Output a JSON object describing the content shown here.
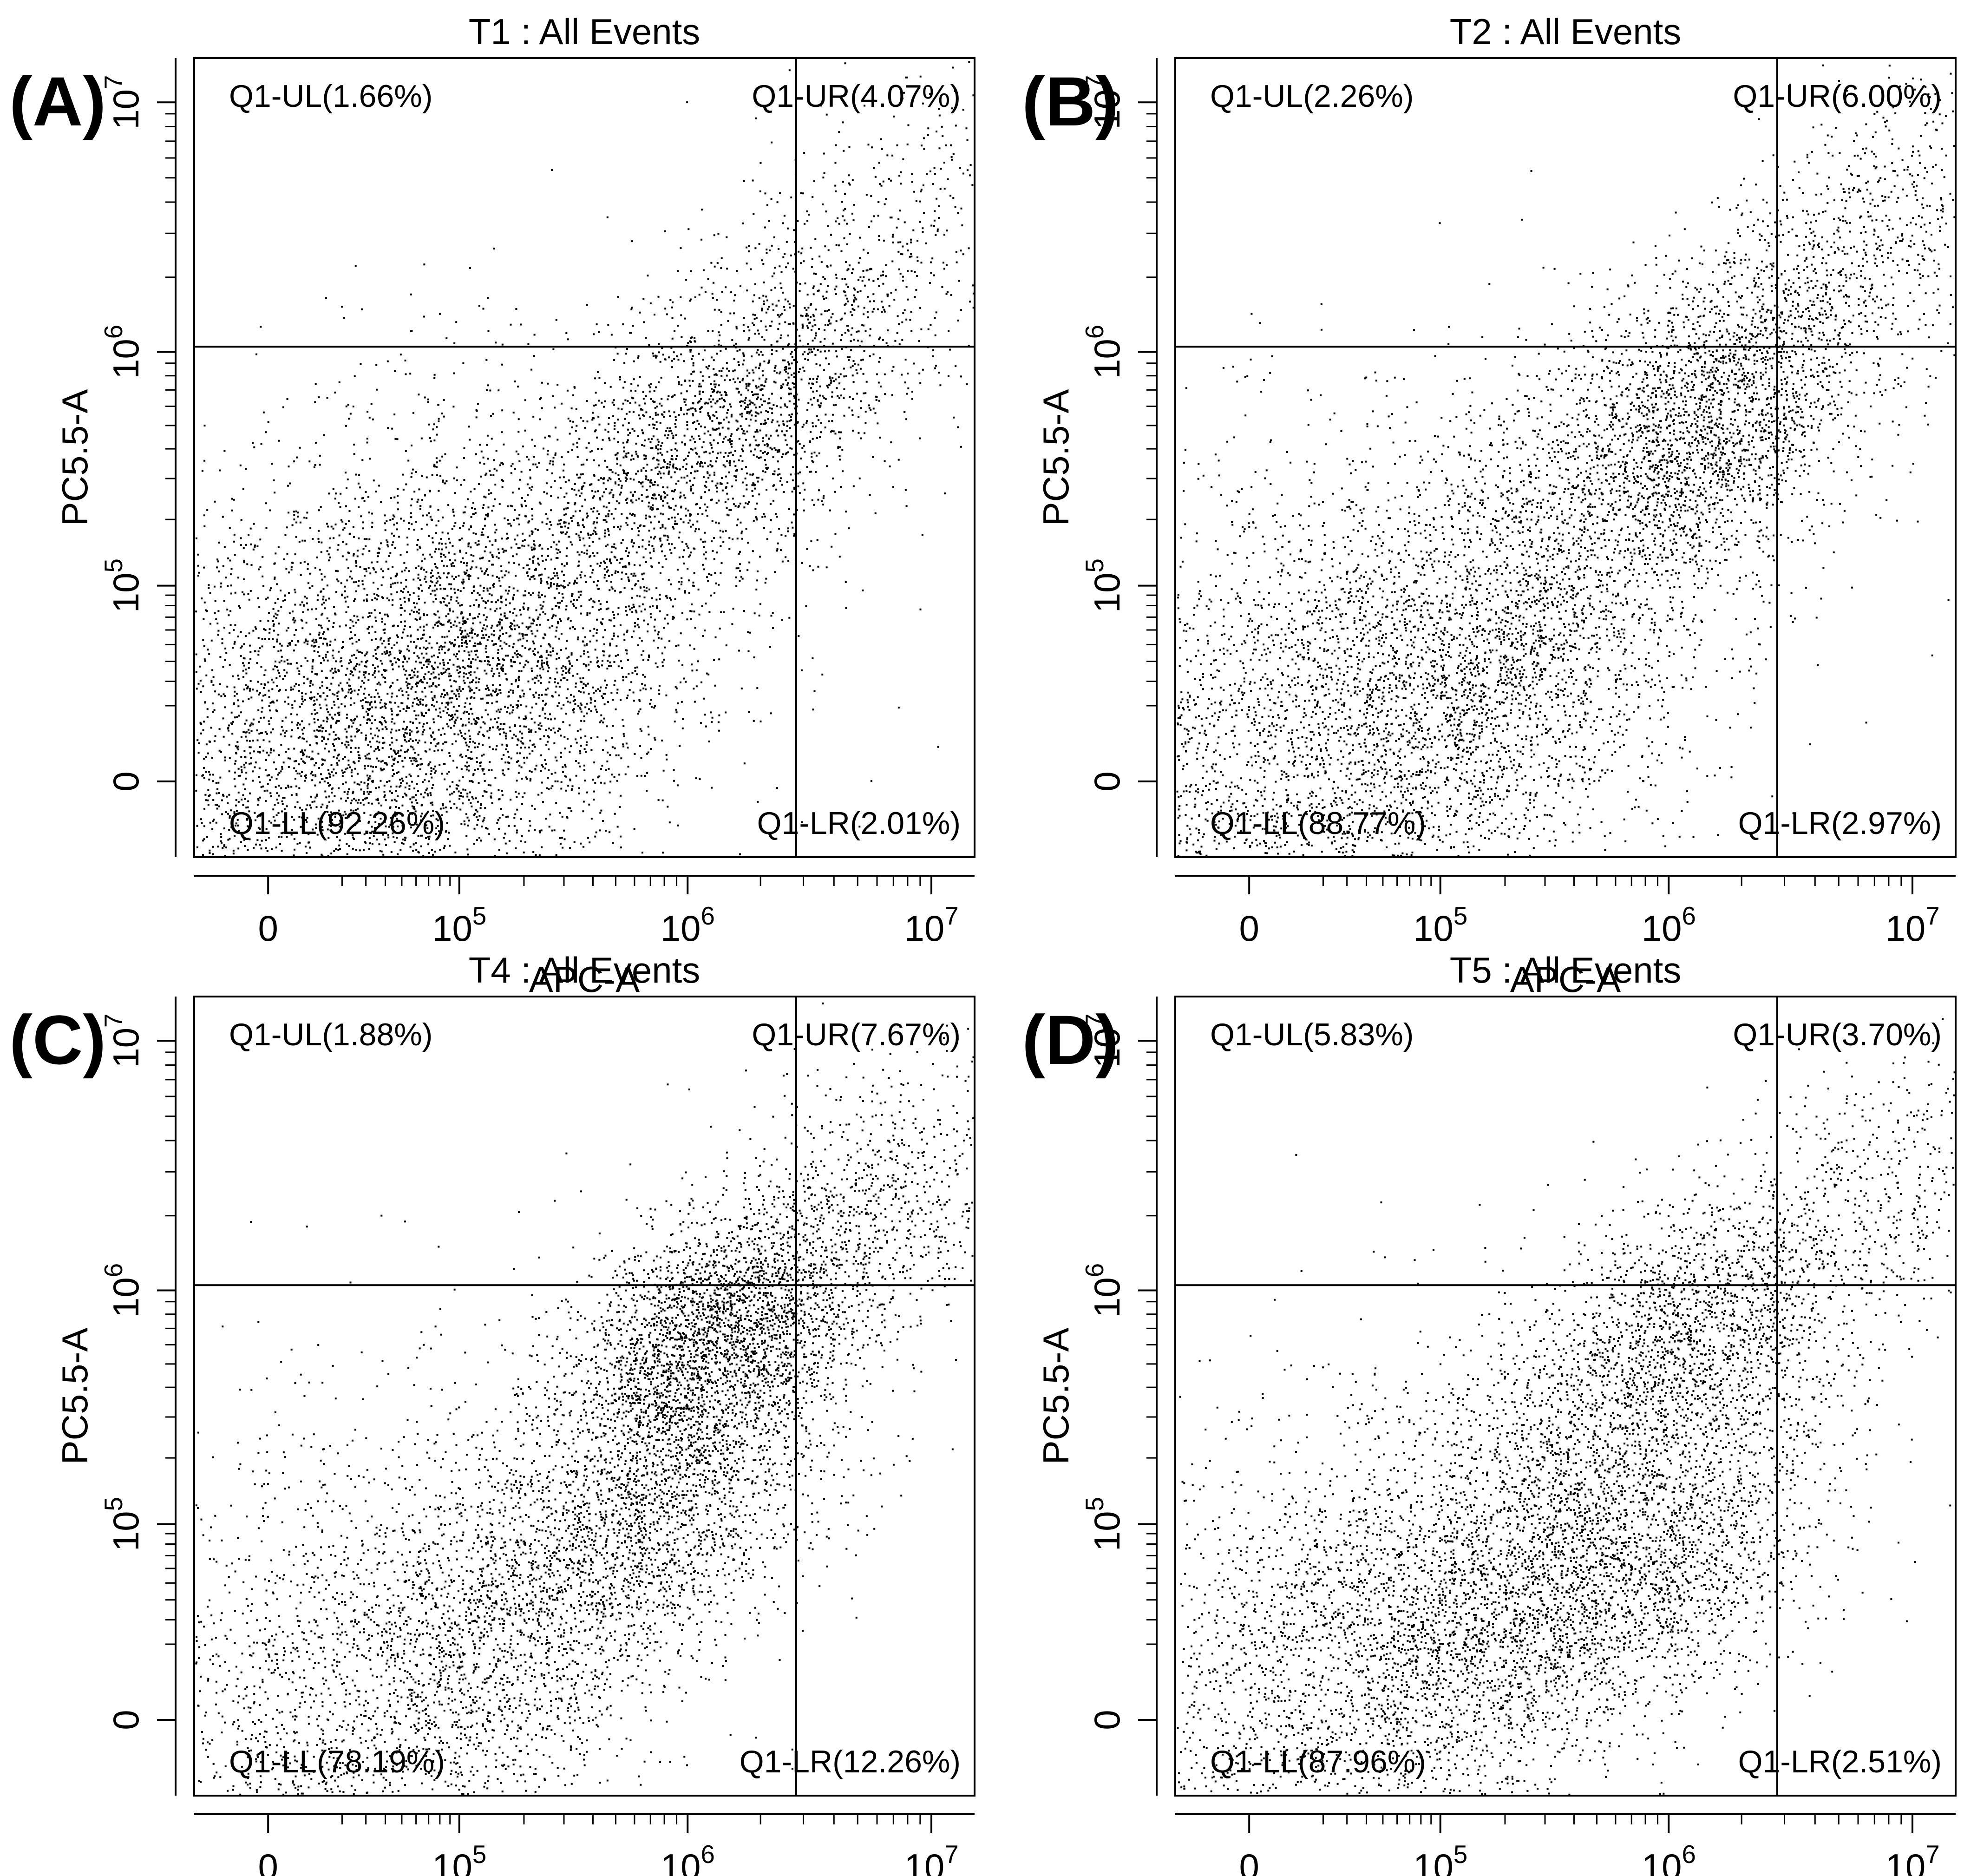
{
  "figure": {
    "panel_letters": [
      "(A)",
      "(B)",
      "(C)",
      "(D)"
    ]
  },
  "chart_data": [
    {
      "type": "scatter",
      "panel": "(A)",
      "title": "T1 : All Events",
      "xlabel": "APC-A",
      "ylabel": "PC5.5-A",
      "x_tick_labels": [
        "0",
        "10^5",
        "10^6",
        "10^7"
      ],
      "y_tick_labels": [
        "0",
        "10^5",
        "10^6",
        "10^7"
      ],
      "scale": "biexponential",
      "xlim": [
        -20000,
        15000000
      ],
      "ylim": [
        -20000,
        15000000
      ],
      "gate": {
        "x": 2800000,
        "y": 1050000
      },
      "quadrants": [
        {
          "name": "Q1-UL",
          "percent": "1.66%",
          "label": "Q1-UL(1.66%)"
        },
        {
          "name": "Q1-UR",
          "percent": "4.07%",
          "label": "Q1-UR(4.07%)"
        },
        {
          "name": "Q1-LL",
          "percent": "92.26%",
          "label": "Q1-LL(92.26%)"
        },
        {
          "name": "Q1-LR",
          "percent": "2.01%",
          "label": "Q1-LR(2.01%)"
        }
      ],
      "populations": [
        {
          "x": 25000,
          "y": 18000,
          "weight": 0.52,
          "spread": 0.7
        },
        {
          "x": 120000,
          "y": 30000,
          "weight": 0.2,
          "spread": 0.45
        },
        {
          "x": 1000000,
          "y": 350000,
          "weight": 0.15,
          "spread": 0.35
        },
        {
          "x": 2500000,
          "y": 900000,
          "weight": 0.08,
          "spread": 0.35
        },
        {
          "x": 7000000,
          "y": 3000000,
          "weight": 0.05,
          "spread": 0.35
        }
      ]
    },
    {
      "type": "scatter",
      "panel": "(B)",
      "title": "T2 : All Events",
      "xlabel": "APC-A",
      "ylabel": "PC5.5-A",
      "x_tick_labels": [
        "0",
        "10^5",
        "10^6",
        "10^7"
      ],
      "y_tick_labels": [
        "0",
        "10^5",
        "10^6",
        "10^7"
      ],
      "scale": "biexponential",
      "xlim": [
        -20000,
        15000000
      ],
      "ylim": [
        -20000,
        15000000
      ],
      "gate": {
        "x": 2800000,
        "y": 1050000
      },
      "quadrants": [
        {
          "name": "Q1-UL",
          "percent": "2.26%",
          "label": "Q1-UL(2.26%)"
        },
        {
          "name": "Q1-UR",
          "percent": "6.00%",
          "label": "Q1-UR(6.00%)"
        },
        {
          "name": "Q1-LL",
          "percent": "88.77%",
          "label": "Q1-LL(88.77%)"
        },
        {
          "name": "Q1-LR",
          "percent": "2.97%",
          "label": "Q1-LR(2.97%)"
        }
      ],
      "populations": [
        {
          "x": 25000,
          "y": 15000,
          "weight": 0.45,
          "spread": 0.7
        },
        {
          "x": 200000,
          "y": 40000,
          "weight": 0.18,
          "spread": 0.45
        },
        {
          "x": 1200000,
          "y": 450000,
          "weight": 0.25,
          "spread": 0.35
        },
        {
          "x": 3000000,
          "y": 1300000,
          "weight": 0.07,
          "spread": 0.3
        },
        {
          "x": 8000000,
          "y": 4000000,
          "weight": 0.05,
          "spread": 0.3
        }
      ]
    },
    {
      "type": "scatter",
      "panel": "(C)",
      "title": "T4 : All Events",
      "xlabel": "APC-A",
      "ylabel": "PC5.5-A",
      "x_tick_labels": [
        "0",
        "10^5",
        "10^6",
        "10^7"
      ],
      "y_tick_labels": [
        "0",
        "10^5",
        "10^6",
        "10^7"
      ],
      "scale": "biexponential",
      "xlim": [
        -20000,
        15000000
      ],
      "ylim": [
        -20000,
        15000000
      ],
      "gate": {
        "x": 2800000,
        "y": 1050000
      },
      "quadrants": [
        {
          "name": "Q1-UL",
          "percent": "1.88%",
          "label": "Q1-UL(1.88%)"
        },
        {
          "name": "Q1-UR",
          "percent": "7.67%",
          "label": "Q1-UR(7.67%)"
        },
        {
          "name": "Q1-LL",
          "percent": "78.19%",
          "label": "Q1-LL(78.19%)"
        },
        {
          "name": "Q1-LR",
          "percent": "12.26%",
          "label": "Q1-LR(12.26%)"
        }
      ],
      "populations": [
        {
          "x": 20000,
          "y": 10000,
          "weight": 0.25,
          "spread": 0.7
        },
        {
          "x": 150000,
          "y": 25000,
          "weight": 0.17,
          "spread": 0.45
        },
        {
          "x": 800000,
          "y": 120000,
          "weight": 0.18,
          "spread": 0.35
        },
        {
          "x": 1300000,
          "y": 650000,
          "weight": 0.3,
          "spread": 0.3
        },
        {
          "x": 6000000,
          "y": 2200000,
          "weight": 0.1,
          "spread": 0.35
        }
      ]
    },
    {
      "type": "scatter",
      "panel": "(D)",
      "title": "T5 : All Events",
      "xlabel": "APC-A",
      "ylabel": "PC5.5-A",
      "x_tick_labels": [
        "0",
        "10^5",
        "10^6",
        "10^7"
      ],
      "y_tick_labels": [
        "0",
        "10^5",
        "10^6",
        "10^7"
      ],
      "scale": "biexponential",
      "xlim": [
        -20000,
        15000000
      ],
      "ylim": [
        -20000,
        15000000
      ],
      "gate": {
        "x": 2800000,
        "y": 1050000
      },
      "quadrants": [
        {
          "name": "Q1-UL",
          "percent": "5.83%",
          "label": "Q1-UL(5.83%)"
        },
        {
          "name": "Q1-UR",
          "percent": "3.70%",
          "label": "Q1-UR(3.70%)"
        },
        {
          "name": "Q1-LL",
          "percent": "87.96%",
          "label": "Q1-LL(87.96%)"
        },
        {
          "name": "Q1-LR",
          "percent": "2.51%",
          "label": "Q1-LR(2.51%)"
        }
      ],
      "populations": [
        {
          "x": 25000,
          "y": 15000,
          "weight": 0.3,
          "spread": 0.7
        },
        {
          "x": 200000,
          "y": 30000,
          "weight": 0.22,
          "spread": 0.45
        },
        {
          "x": 1000000,
          "y": 70000,
          "weight": 0.14,
          "spread": 0.35
        },
        {
          "x": 300000,
          "y": 150000,
          "weight": 0.08,
          "spread": 0.4
        },
        {
          "x": 1200000,
          "y": 650000,
          "weight": 0.2,
          "spread": 0.35
        },
        {
          "x": 7000000,
          "y": 2500000,
          "weight": 0.06,
          "spread": 0.35
        }
      ]
    }
  ]
}
